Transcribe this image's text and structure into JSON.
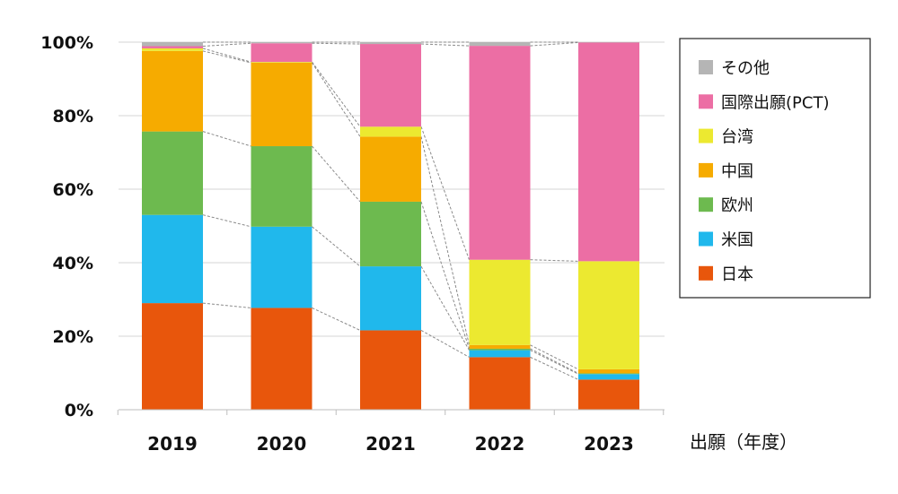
{
  "chart_data": {
    "type": "bar",
    "stacked": true,
    "normalized_percent": true,
    "categories": [
      "2019",
      "2020",
      "2021",
      "2022",
      "2023"
    ],
    "xlabel": "出願（年度）",
    "ylabel": "",
    "ylim": [
      0,
      100
    ],
    "y_ticks": [
      "0%",
      "20%",
      "40%",
      "60%",
      "80%",
      "100%"
    ],
    "grid": true,
    "legend_position": "right",
    "series": [
      {
        "name": "日本",
        "color": "#e8560c",
        "values": [
          29,
          27.7,
          21.6,
          14.3,
          8.2
        ]
      },
      {
        "name": "米国",
        "color": "#20b8ec",
        "values": [
          24,
          22.1,
          17.4,
          1.9,
          1.5
        ]
      },
      {
        "name": "欧州",
        "color": "#6dba4f",
        "values": [
          22.7,
          21.9,
          17.6,
          0.4,
          0.2
        ]
      },
      {
        "name": "中国",
        "color": "#f6ab00",
        "values": [
          21.9,
          22.7,
          17.7,
          1.0,
          1.1
        ]
      },
      {
        "name": "台湾",
        "color": "#ece930",
        "values": [
          0.7,
          0.2,
          2.7,
          23.2,
          29.4
        ]
      },
      {
        "name": "国際出願(PCT)",
        "color": "#ec6ea4",
        "values": [
          0.6,
          5.1,
          22.5,
          58.2,
          59.5
        ]
      },
      {
        "name": "その他",
        "color": "#b5b5b5",
        "values": [
          1.1,
          0.3,
          0.5,
          1.0,
          0.1
        ]
      }
    ],
    "legend_order": [
      "その他",
      "国際出願(PCT)",
      "台湾",
      "中国",
      "欧州",
      "米国",
      "日本"
    ]
  }
}
